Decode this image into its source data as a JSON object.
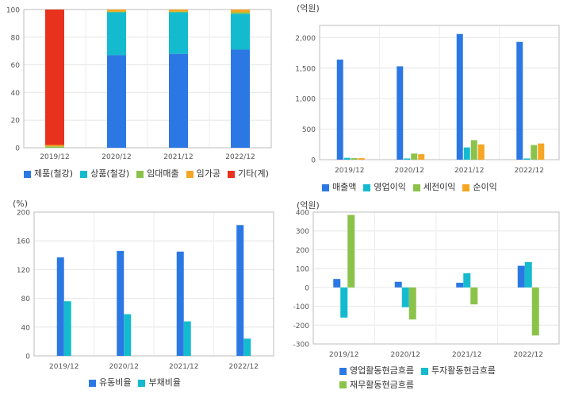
{
  "colors": {
    "blue": "#2b78e4",
    "cyan": "#14bbcf",
    "green": "#8bc34a",
    "orange": "#f5a623",
    "red": "#e8321e"
  },
  "chart_data": [
    {
      "type": "bar",
      "stacked": true,
      "unit": "",
      "categories": [
        "2019/12",
        "2020/12",
        "2021/12",
        "2022/12"
      ],
      "ylim": [
        0,
        100
      ],
      "yticks": [
        0,
        20,
        40,
        60,
        80,
        100
      ],
      "grid": true,
      "legend_position": "bottom",
      "series": [
        {
          "name": "제품(철강)",
          "color": "#2b78e4",
          "values": [
            0,
            67,
            68,
            71
          ]
        },
        {
          "name": "상품(철강)",
          "color": "#14bbcf",
          "values": [
            0,
            31,
            30,
            26
          ]
        },
        {
          "name": "임대매출",
          "color": "#8bc34a",
          "values": [
            1,
            0.5,
            0.5,
            1
          ]
        },
        {
          "name": "임가공",
          "color": "#f5a623",
          "values": [
            1,
            1.5,
            1.5,
            2
          ]
        },
        {
          "name": "기타(계)",
          "color": "#e8321e",
          "values": [
            98,
            0,
            0,
            0
          ]
        }
      ]
    },
    {
      "type": "bar",
      "unit": "(억원)",
      "categories": [
        "2019/12",
        "2020/12",
        "2021/12",
        "2022/12"
      ],
      "ylim": [
        0,
        2200
      ],
      "yticks": [
        0,
        500,
        1000,
        1500,
        2000
      ],
      "ytick_labels": [
        "0",
        "500",
        "1,000",
        "1,500",
        "2,000"
      ],
      "grid": true,
      "legend_position": "bottom",
      "series": [
        {
          "name": "매출액",
          "color": "#2b78e4",
          "values": [
            1640,
            1530,
            2060,
            1930
          ]
        },
        {
          "name": "영업이익",
          "color": "#14bbcf",
          "values": [
            30,
            20,
            200,
            20
          ]
        },
        {
          "name": "세전이익",
          "color": "#8bc34a",
          "values": [
            25,
            100,
            320,
            240
          ]
        },
        {
          "name": "순이익",
          "color": "#f5a623",
          "values": [
            25,
            90,
            250,
            265
          ]
        }
      ]
    },
    {
      "type": "bar",
      "unit": "(%)",
      "categories": [
        "2019/12",
        "2020/12",
        "2021/12",
        "2022/12"
      ],
      "ylim": [
        0,
        200
      ],
      "yticks": [
        0,
        40,
        80,
        120,
        160,
        200
      ],
      "grid": true,
      "legend_position": "bottom",
      "series": [
        {
          "name": "유동비율",
          "color": "#2b78e4",
          "values": [
            137,
            146,
            145,
            182
          ]
        },
        {
          "name": "부채비율",
          "color": "#14bbcf",
          "values": [
            76,
            58,
            48,
            24
          ]
        }
      ]
    },
    {
      "type": "bar",
      "unit": "(억원)",
      "categories": [
        "2019/12",
        "2020/12",
        "2021/12",
        "2022/12"
      ],
      "ylim": [
        -300,
        400
      ],
      "yticks": [
        -300,
        -200,
        -100,
        0,
        100,
        200,
        300,
        400
      ],
      "grid": true,
      "legend_position": "bottom",
      "series": [
        {
          "name": "영업활동현금흐름",
          "color": "#2b78e4",
          "values": [
            45,
            30,
            25,
            115
          ]
        },
        {
          "name": "투자활동현금흐름",
          "color": "#14bbcf",
          "values": [
            -160,
            -105,
            75,
            135
          ]
        },
        {
          "name": "재무활동현금흐름",
          "color": "#8bc34a",
          "values": [
            385,
            -170,
            -90,
            -255
          ]
        }
      ]
    }
  ]
}
